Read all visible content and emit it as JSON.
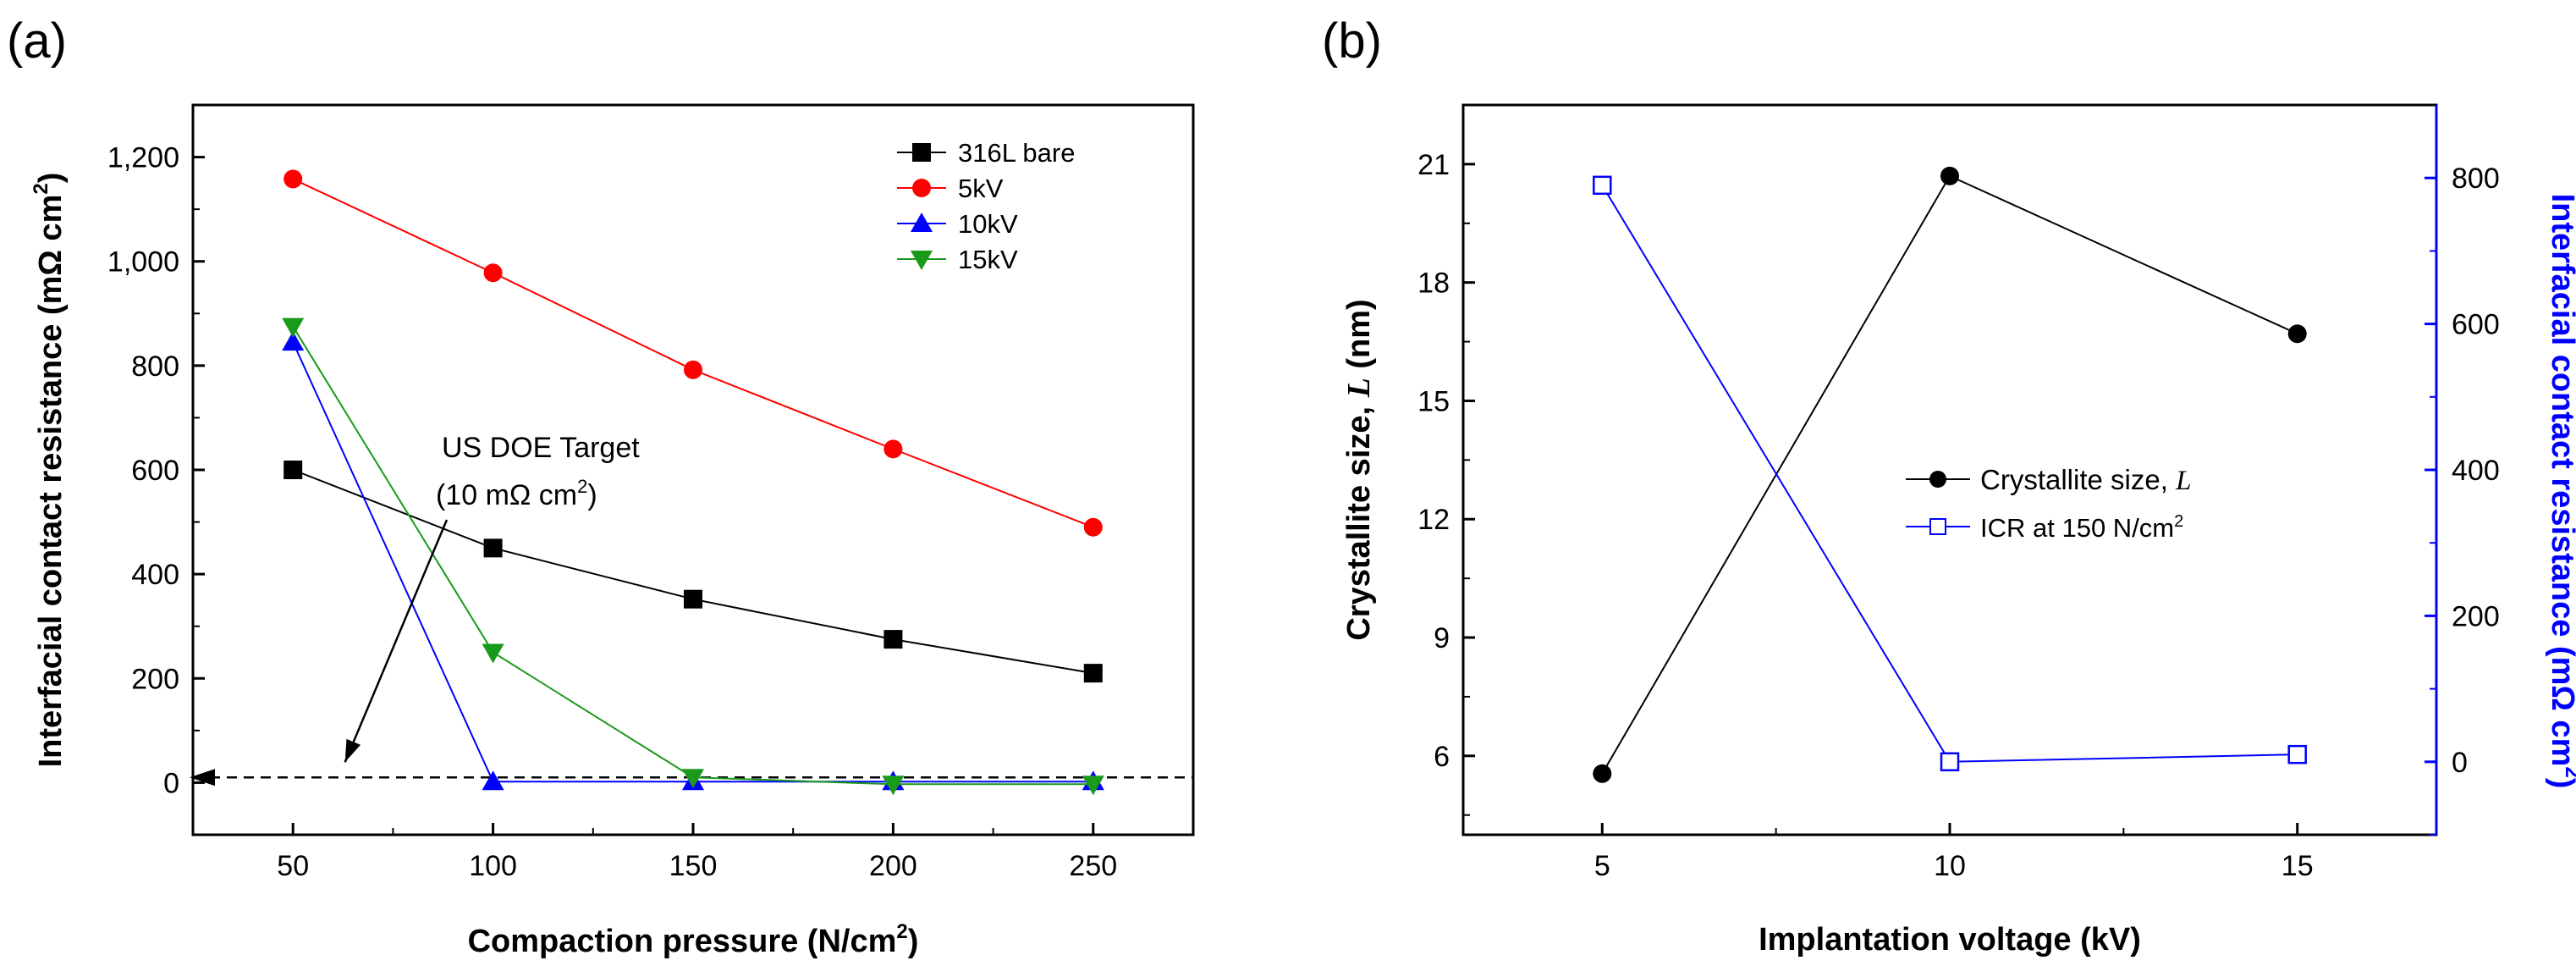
{
  "chart_data": [
    {
      "panel_label": "(a)",
      "type": "line",
      "xlabel_parts": [
        "Compaction pressure (N/cm",
        "2",
        ")"
      ],
      "ylabel_parts": [
        "Interfacial contact resistance (mΩ cm",
        "2",
        ")"
      ],
      "xlim": [
        25,
        275
      ],
      "ylim": [
        -100,
        1300
      ],
      "x_ticks": [
        50,
        100,
        150,
        200,
        250
      ],
      "y_ticks": [
        0,
        200,
        400,
        600,
        800,
        1000,
        1200
      ],
      "y_tick_labels": [
        "0",
        "200",
        "400",
        "600",
        "800",
        "1,000",
        "1,200"
      ],
      "legend_position": "top-right",
      "colors": {
        "bare": "#000000",
        "kv5": "#ff0000",
        "kv10": "#0000ff",
        "kv15": "#1a9a1a"
      },
      "series": [
        {
          "name": "316L bare",
          "marker": "square",
          "color": "#000000",
          "x": [
            50,
            100,
            150,
            200,
            250
          ],
          "y": [
            600,
            450,
            352,
            275,
            210
          ]
        },
        {
          "name": "5kV",
          "marker": "circle",
          "color": "#ff0000",
          "x": [
            50,
            100,
            150,
            200,
            250
          ],
          "y": [
            1158,
            978,
            792,
            640,
            490
          ]
        },
        {
          "name": "10kV",
          "marker": "triangle-up",
          "color": "#0000ff",
          "x": [
            50,
            100,
            150,
            200,
            250
          ],
          "y": [
            845,
            2,
            2,
            2,
            2
          ]
        },
        {
          "name": "15kV",
          "marker": "triangle-down",
          "color": "#1a9a1a",
          "x": [
            50,
            100,
            150,
            200,
            250
          ],
          "y": [
            875,
            250,
            10,
            -3,
            -3
          ]
        }
      ],
      "reference_line": {
        "y": 10,
        "style": "dashed",
        "color": "#000000"
      },
      "annotation": {
        "line1": "US DOE  Target",
        "line2_parts": [
          "(10 mΩ cm",
          "2",
          ")"
        ],
        "arrow_to": {
          "x": 63,
          "y": 10
        }
      }
    },
    {
      "panel_label": "(b)",
      "type": "line",
      "dual_axis": true,
      "xlabel": "Implantation voltage (kV)",
      "ylabel_left_text": "Crystallite size, ",
      "ylabel_left_italic": "L",
      "ylabel_left_unit": " (nm)",
      "ylabel_right_parts": [
        "Interfacial contact resistance (mΩ cm",
        "2",
        ")"
      ],
      "xlim": [
        3,
        17
      ],
      "x_ticks": [
        5,
        10,
        15
      ],
      "ylim_left": [
        4,
        22.5
      ],
      "y_ticks_left": [
        6,
        9,
        12,
        15,
        18,
        21
      ],
      "ylim_right": [
        -100,
        900
      ],
      "y_ticks_right": [
        0,
        200,
        400,
        600,
        800
      ],
      "right_axis_color": "#0000ff",
      "legend_position": "center",
      "series": [
        {
          "name_text": "Crystallite size, ",
          "name_italic": "L",
          "axis": "left",
          "marker": "filled-circle",
          "color": "#000000",
          "x": [
            5,
            10,
            15
          ],
          "y": [
            5.55,
            20.7,
            16.7
          ]
        },
        {
          "name_parts": [
            "ICR at 150 N/cm",
            "2",
            ""
          ],
          "axis": "right",
          "marker": "open-square",
          "color": "#0000ff",
          "x": [
            5,
            10,
            15
          ],
          "y": [
            790,
            0,
            10
          ]
        }
      ]
    }
  ]
}
